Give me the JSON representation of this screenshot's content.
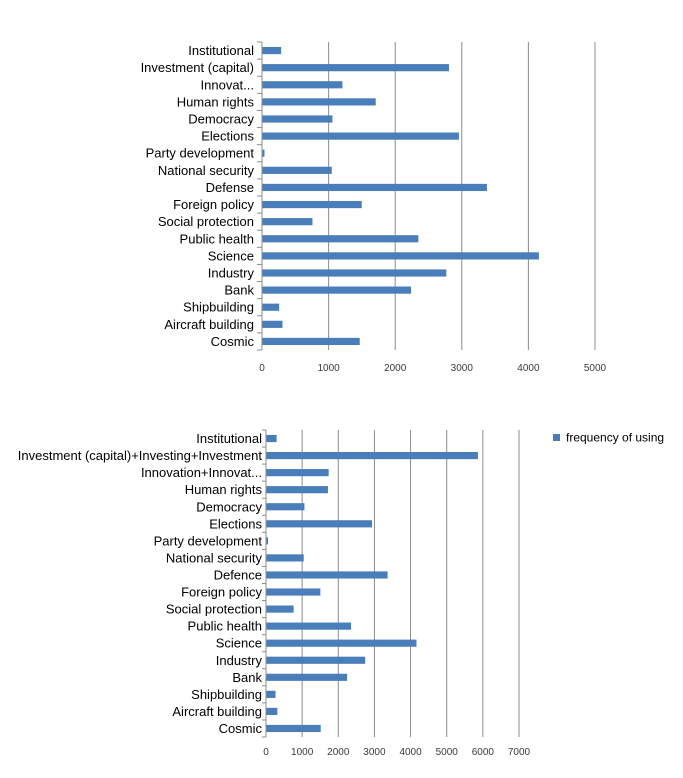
{
  "chart_data": [
    {
      "type": "bar",
      "orientation": "horizontal",
      "categories": [
        "Institutional",
        "Investment (capital)",
        "Innovat...",
        "Human rights",
        "Democracy",
        "Elections",
        "Party development",
        "National security",
        "Defense",
        "Foreign policy",
        "Social protection",
        "Public health",
        "Science",
        "Industry",
        "Bank",
        "Shipbuilding",
        "Aircraft building",
        "Cosmic"
      ],
      "values": [
        280,
        2800,
        1200,
        1700,
        1050,
        2950,
        30,
        1040,
        3370,
        1490,
        750,
        2340,
        4150,
        2760,
        2230,
        250,
        300,
        1460
      ],
      "xlim": [
        0,
        5000
      ],
      "xticks": [
        0,
        1000,
        2000,
        3000,
        4000,
        5000
      ],
      "grid": true,
      "color": "#4A7EBB"
    },
    {
      "type": "bar",
      "orientation": "horizontal",
      "categories": [
        "Institutional",
        "Investment (capital)+Investing+Investment",
        "Innovation+Innovat...",
        "Human rights",
        "Democracy",
        "Elections",
        "Party development",
        "National security",
        "Defence",
        "Foreign policy",
        "Social protection",
        "Public health",
        "Science",
        "Industry",
        "Bank",
        "Shipbuilding",
        "Aircraft building",
        "Cosmic"
      ],
      "series": [
        {
          "name": "frequency of using",
          "values": [
            280,
            5850,
            1720,
            1700,
            1050,
            2920,
            30,
            1030,
            3350,
            1490,
            750,
            2340,
            4150,
            2730,
            2230,
            250,
            300,
            1500
          ]
        }
      ],
      "xlim": [
        0,
        7000
      ],
      "xticks": [
        0,
        1000,
        2000,
        3000,
        4000,
        5000,
        6000,
        7000
      ],
      "grid": true,
      "legend": "top-right",
      "color": "#4A7EBB"
    }
  ]
}
